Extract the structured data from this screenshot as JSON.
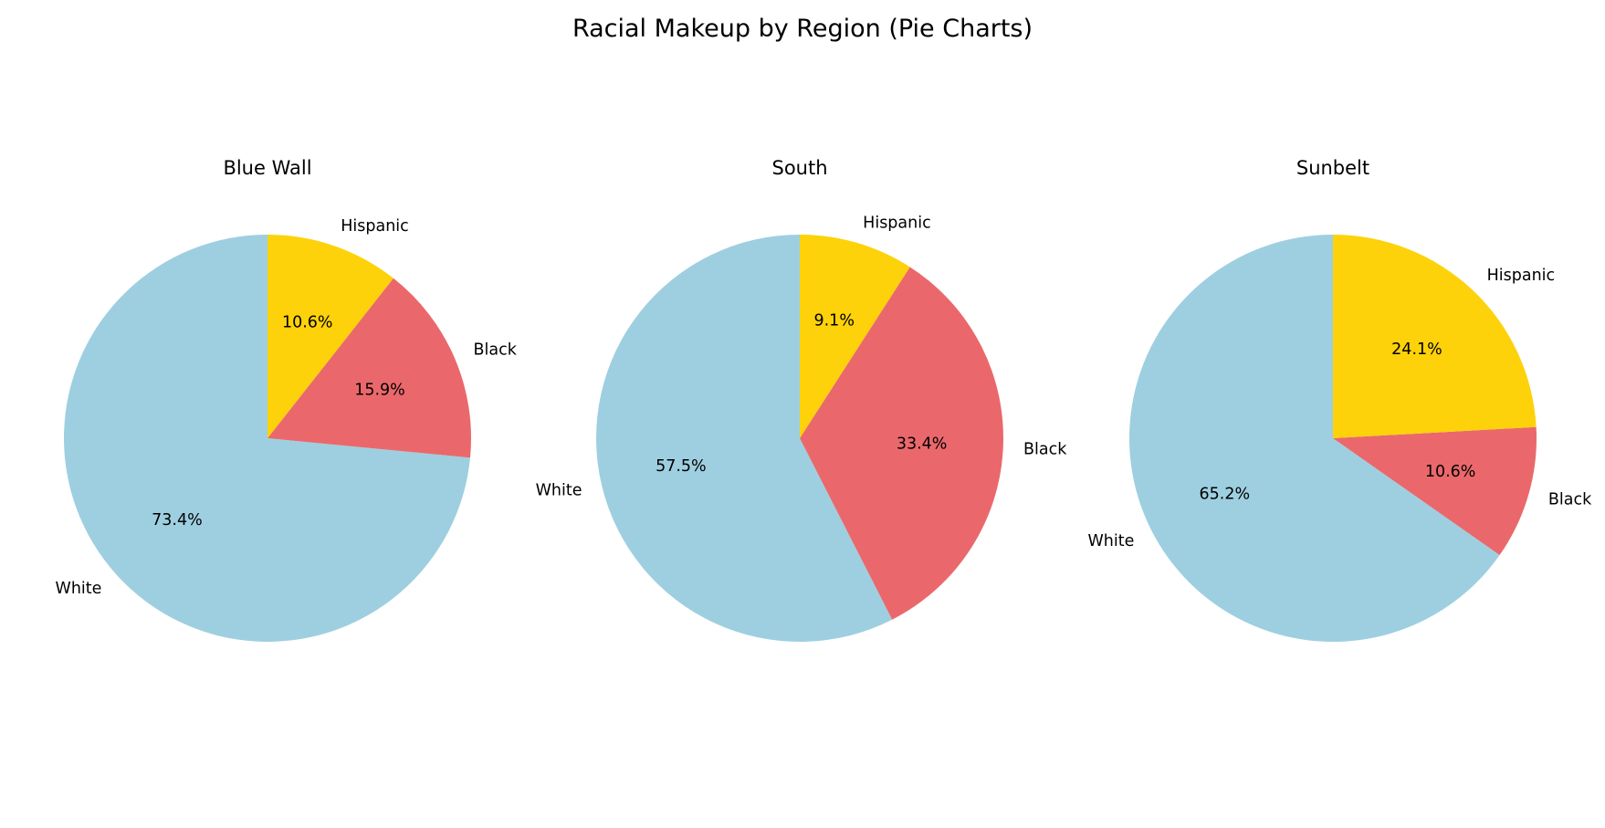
{
  "title": "Racial Makeup by Region (Pie Charts)",
  "colors": {
    "White": "#9ecfe0",
    "Black": "#ea686b",
    "Hispanic": "#fdd20a"
  },
  "chart_data": [
    {
      "type": "pie",
      "title": "Blue Wall",
      "start_angle_deg": 90,
      "direction": "counterclockwise",
      "slices": [
        {
          "label": "White",
          "value": 73.4,
          "pct_label": "73.4%"
        },
        {
          "label": "Black",
          "value": 15.9,
          "pct_label": "15.9%"
        },
        {
          "label": "Hispanic",
          "value": 10.6,
          "pct_label": "10.6%"
        }
      ]
    },
    {
      "type": "pie",
      "title": "South",
      "start_angle_deg": 90,
      "direction": "counterclockwise",
      "slices": [
        {
          "label": "White",
          "value": 57.5,
          "pct_label": "57.5%"
        },
        {
          "label": "Black",
          "value": 33.4,
          "pct_label": "33.4%"
        },
        {
          "label": "Hispanic",
          "value": 9.1,
          "pct_label": "9.1%"
        }
      ]
    },
    {
      "type": "pie",
      "title": "Sunbelt",
      "start_angle_deg": 90,
      "direction": "counterclockwise",
      "slices": [
        {
          "label": "White",
          "value": 65.2,
          "pct_label": "65.2%"
        },
        {
          "label": "Black",
          "value": 10.6,
          "pct_label": "10.6%"
        },
        {
          "label": "Hispanic",
          "value": 24.1,
          "pct_label": "24.1%"
        }
      ]
    }
  ]
}
